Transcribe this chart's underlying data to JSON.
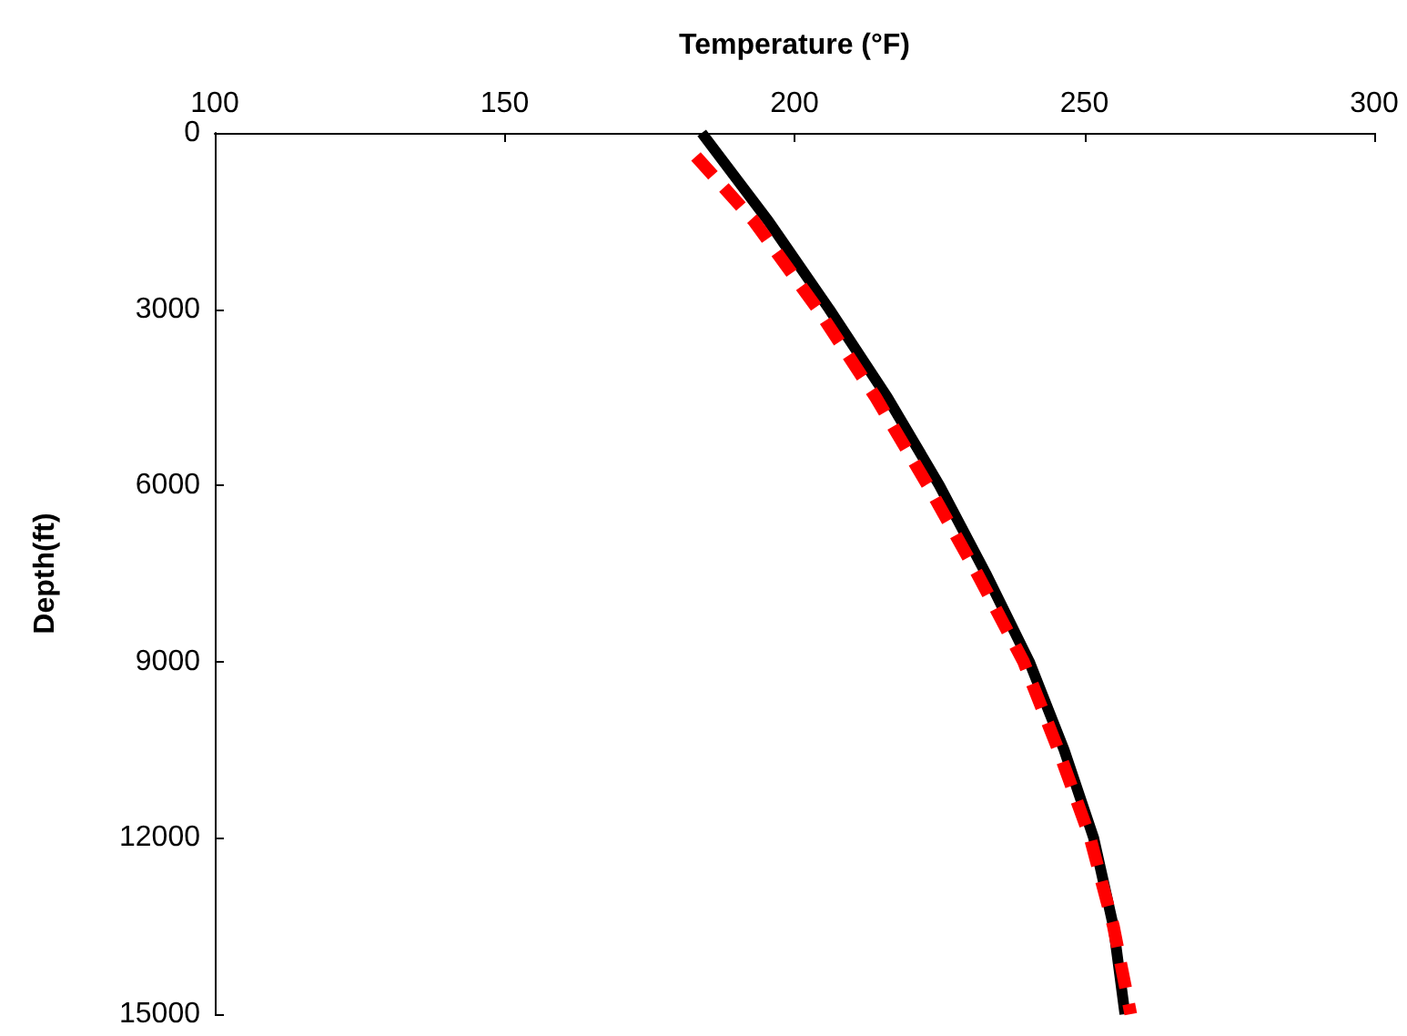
{
  "chart_data": {
    "type": "line",
    "xlabel": "Temperature (°F)",
    "ylabel": "Depth(ft)",
    "xlim": [
      100,
      300
    ],
    "xticks": [
      100,
      150,
      200,
      250,
      300
    ],
    "ylim": [
      15000,
      0
    ],
    "yticks": [
      0,
      3000,
      6000,
      9000,
      12000,
      15000
    ],
    "grid": false,
    "marker": "none",
    "series": [
      {
        "color": "#000000",
        "line_style": "solid",
        "x": [
          184,
          195.5,
          206,
          216,
          225,
          233,
          240.5,
          246.5,
          251.6,
          255,
          257
        ],
        "values": [
          0,
          1500,
          3000,
          4500,
          6000,
          7500,
          9000,
          10500,
          12000,
          13500,
          15000
        ]
      },
      {
        "color": "#ff0000",
        "line_style": "dashed",
        "x": [
          183,
          193,
          204,
          214,
          223,
          231.5,
          239.5,
          245.5,
          251,
          255,
          258
        ],
        "values": [
          400,
          1500,
          3000,
          4500,
          6000,
          7500,
          9000,
          10500,
          12000,
          13500,
          15000
        ]
      }
    ]
  }
}
